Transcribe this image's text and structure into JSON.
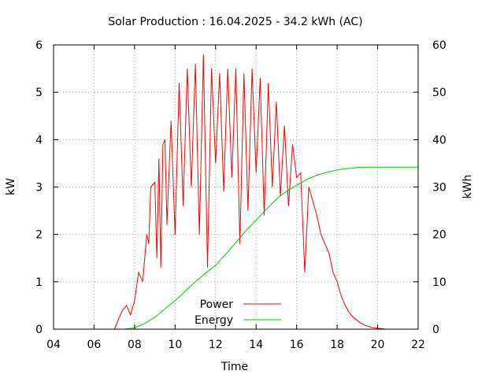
{
  "chart_data": {
    "type": "line",
    "title": "Solar Production : 16.04.2025 - 34.2 kWh (AC)",
    "xlabel": "Time",
    "ylabel": "kW",
    "y2label": "kWh",
    "xlim": [
      4,
      22
    ],
    "ylim": [
      0,
      6
    ],
    "y2lim": [
      0,
      60
    ],
    "x_ticks": [
      "04",
      "06",
      "08",
      "10",
      "12",
      "14",
      "16",
      "18",
      "20",
      "22"
    ],
    "x_tick_values": [
      4,
      6,
      8,
      10,
      12,
      14,
      16,
      18,
      20,
      22
    ],
    "y_ticks": [
      "0",
      "1",
      "2",
      "3",
      "4",
      "5",
      "6"
    ],
    "y2_ticks": [
      "0",
      "10",
      "20",
      "30",
      "40",
      "50",
      "60"
    ],
    "grid": true,
    "legend_position": "bottom-center",
    "series": [
      {
        "name": "Power",
        "axis": "left",
        "color": "#ff0000",
        "x": [
          7.0,
          7.2,
          7.4,
          7.6,
          7.8,
          8.0,
          8.2,
          8.4,
          8.6,
          8.7,
          8.8,
          9.0,
          9.1,
          9.2,
          9.3,
          9.4,
          9.5,
          9.6,
          9.8,
          10.0,
          10.2,
          10.4,
          10.6,
          10.8,
          11.0,
          11.2,
          11.4,
          11.6,
          11.8,
          12.0,
          12.2,
          12.4,
          12.6,
          12.8,
          13.0,
          13.2,
          13.4,
          13.6,
          13.8,
          14.0,
          14.2,
          14.4,
          14.6,
          14.8,
          15.0,
          15.2,
          15.4,
          15.6,
          15.8,
          16.0,
          16.2,
          16.4,
          16.6,
          16.8,
          17.0,
          17.2,
          17.4,
          17.6,
          17.8,
          18.0,
          18.2,
          18.4,
          18.6,
          18.8,
          19.0,
          19.2,
          19.4,
          19.6,
          19.8,
          20.0,
          20.2,
          20.4,
          20.5
        ],
        "values": [
          0.0,
          0.2,
          0.4,
          0.5,
          0.3,
          0.6,
          1.2,
          1.0,
          2.0,
          1.8,
          3.0,
          3.1,
          1.5,
          3.6,
          1.3,
          3.9,
          4.0,
          2.2,
          4.4,
          2.0,
          5.2,
          2.6,
          5.5,
          3.0,
          5.6,
          2.0,
          5.8,
          1.3,
          5.5,
          3.5,
          5.4,
          2.9,
          5.5,
          3.2,
          5.5,
          1.8,
          5.4,
          2.5,
          5.5,
          3.3,
          5.3,
          2.4,
          5.2,
          3.0,
          4.8,
          2.8,
          4.3,
          2.6,
          3.9,
          3.2,
          3.3,
          1.2,
          3.0,
          2.7,
          2.4,
          2.0,
          1.8,
          1.6,
          1.2,
          1.0,
          0.7,
          0.5,
          0.35,
          0.25,
          0.18,
          0.12,
          0.08,
          0.05,
          0.03,
          0.02,
          0.01,
          0.0,
          0.0
        ]
      },
      {
        "name": "Energy",
        "axis": "right",
        "color": "#00cc00",
        "x": [
          7.5,
          8.0,
          8.5,
          9.0,
          9.5,
          10.0,
          10.5,
          11.0,
          11.5,
          12.0,
          12.5,
          13.0,
          13.5,
          14.0,
          14.5,
          15.0,
          15.5,
          16.0,
          16.5,
          17.0,
          17.5,
          18.0,
          18.5,
          19.0,
          19.5,
          20.0,
          21.0,
          22.0
        ],
        "values": [
          0.0,
          0.3,
          1.2,
          2.5,
          4.3,
          6.0,
          8.0,
          10.0,
          11.8,
          13.5,
          15.8,
          18.3,
          20.8,
          23.0,
          25.3,
          27.4,
          29.1,
          30.4,
          31.6,
          32.5,
          33.1,
          33.6,
          33.9,
          34.1,
          34.2,
          34.2,
          34.2,
          34.2
        ]
      }
    ]
  }
}
